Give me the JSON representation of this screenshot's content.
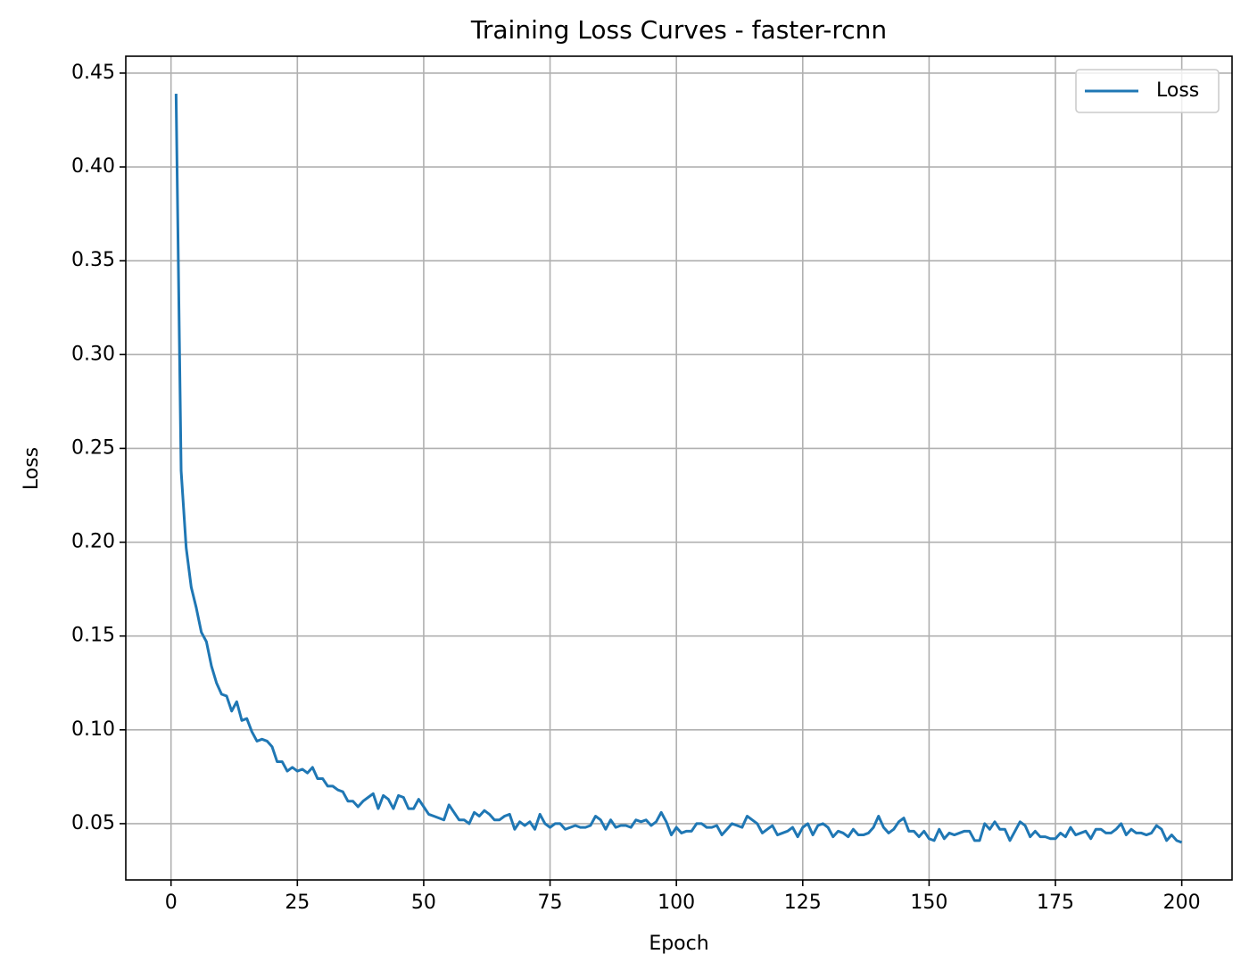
{
  "chart_data": {
    "type": "line",
    "title": "Training Loss Curves - faster-rcnn",
    "xlabel": "Epoch",
    "ylabel": "Loss",
    "x": [
      1,
      2,
      3,
      4,
      5,
      6,
      7,
      8,
      9,
      10,
      11,
      12,
      13,
      14,
      15,
      16,
      17,
      18,
      19,
      20,
      21,
      22,
      23,
      24,
      25,
      26,
      27,
      28,
      29,
      30,
      31,
      32,
      33,
      34,
      35,
      36,
      37,
      38,
      39,
      40,
      41,
      42,
      43,
      44,
      45,
      46,
      47,
      48,
      49,
      50,
      51,
      52,
      53,
      54,
      55,
      56,
      57,
      58,
      59,
      60,
      61,
      62,
      63,
      64,
      65,
      66,
      67,
      68,
      69,
      70,
      71,
      72,
      73,
      74,
      75,
      76,
      77,
      78,
      79,
      80,
      81,
      82,
      83,
      84,
      85,
      86,
      87,
      88,
      89,
      90,
      91,
      92,
      93,
      94,
      95,
      96,
      97,
      98,
      99,
      100,
      101,
      102,
      103,
      104,
      105,
      106,
      107,
      108,
      109,
      110,
      111,
      112,
      113,
      114,
      115,
      116,
      117,
      118,
      119,
      120,
      121,
      122,
      123,
      124,
      125,
      126,
      127,
      128,
      129,
      130,
      131,
      132,
      133,
      134,
      135,
      136,
      137,
      138,
      139,
      140,
      141,
      142,
      143,
      144,
      145,
      146,
      147,
      148,
      149,
      150,
      151,
      152,
      153,
      154,
      155,
      156,
      157,
      158,
      159,
      160,
      161,
      162,
      163,
      164,
      165,
      166,
      167,
      168,
      169,
      170,
      171,
      172,
      173,
      174,
      175,
      176,
      177,
      178,
      179,
      180,
      181,
      182,
      183,
      184,
      185,
      186,
      187,
      188,
      189,
      190,
      191,
      192,
      193,
      194,
      195,
      196,
      197,
      198,
      199,
      200
    ],
    "series": [
      {
        "name": "Loss",
        "color": "#1f77b4",
        "values": [
          0.439,
          0.238,
          0.197,
          0.176,
          0.165,
          0.152,
          0.147,
          0.134,
          0.125,
          0.119,
          0.118,
          0.11,
          0.115,
          0.105,
          0.106,
          0.099,
          0.094,
          0.095,
          0.094,
          0.091,
          0.083,
          0.083,
          0.078,
          0.08,
          0.078,
          0.079,
          0.077,
          0.08,
          0.074,
          0.074,
          0.07,
          0.07,
          0.068,
          0.067,
          0.062,
          0.062,
          0.059,
          0.062,
          0.064,
          0.066,
          0.058,
          0.065,
          0.063,
          0.058,
          0.065,
          0.064,
          0.058,
          0.058,
          0.063,
          0.059,
          0.055,
          0.054,
          0.053,
          0.052,
          0.06,
          0.056,
          0.052,
          0.052,
          0.05,
          0.056,
          0.054,
          0.057,
          0.055,
          0.052,
          0.052,
          0.054,
          0.055,
          0.047,
          0.051,
          0.049,
          0.051,
          0.047,
          0.055,
          0.05,
          0.048,
          0.05,
          0.05,
          0.047,
          0.048,
          0.049,
          0.048,
          0.048,
          0.049,
          0.054,
          0.052,
          0.047,
          0.052,
          0.048,
          0.049,
          0.049,
          0.048,
          0.052,
          0.051,
          0.052,
          0.049,
          0.051,
          0.056,
          0.051,
          0.044,
          0.048,
          0.045,
          0.046,
          0.046,
          0.05,
          0.05,
          0.048,
          0.048,
          0.049,
          0.044,
          0.047,
          0.05,
          0.049,
          0.048,
          0.054,
          0.052,
          0.05,
          0.045,
          0.047,
          0.049,
          0.044,
          0.045,
          0.046,
          0.048,
          0.043,
          0.048,
          0.05,
          0.044,
          0.049,
          0.05,
          0.048,
          0.043,
          0.046,
          0.045,
          0.043,
          0.047,
          0.044,
          0.044,
          0.045,
          0.048,
          0.054,
          0.048,
          0.045,
          0.047,
          0.051,
          0.053,
          0.046,
          0.046,
          0.043,
          0.046,
          0.042,
          0.041,
          0.047,
          0.042,
          0.045,
          0.044,
          0.045,
          0.046,
          0.046,
          0.041,
          0.041,
          0.05,
          0.047,
          0.051,
          0.047,
          0.047,
          0.041,
          0.046,
          0.051,
          0.049,
          0.043,
          0.046,
          0.043,
          0.043,
          0.042,
          0.042,
          0.045,
          0.043,
          0.048,
          0.044,
          0.045,
          0.046,
          0.042,
          0.047,
          0.047,
          0.045,
          0.045,
          0.047,
          0.05,
          0.044,
          0.047,
          0.045,
          0.045,
          0.044,
          0.045,
          0.049,
          0.047,
          0.041,
          0.044,
          0.041,
          0.04
        ]
      }
    ],
    "xlim": [
      -8.95,
      209.95
    ],
    "xticks": [
      0,
      25,
      50,
      75,
      100,
      125,
      150,
      175,
      200
    ],
    "ylim": [
      0.02,
      0.459
    ],
    "yticks": [
      0.05,
      {
        "value": 0.1,
        "label": "0.10"
      },
      0.15,
      {
        "value": 0.2,
        "label": "0.20"
      },
      0.25,
      {
        "value": 0.3,
        "label": "0.30"
      },
      0.35,
      {
        "value": 0.4,
        "label": "0.40"
      },
      0.45
    ],
    "grid": true,
    "legend": "upper right"
  }
}
